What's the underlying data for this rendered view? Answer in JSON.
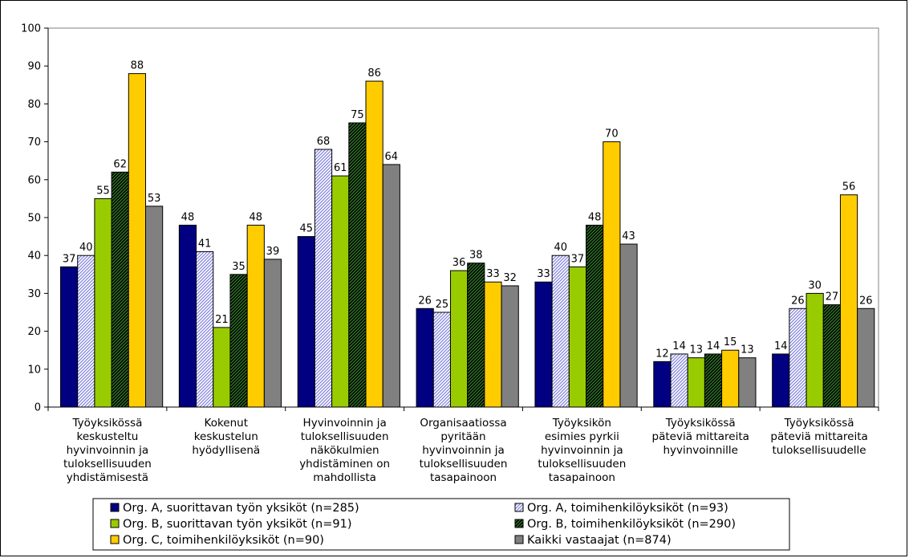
{
  "chart_data": {
    "type": "bar",
    "title": "",
    "xlabel": "",
    "ylabel": "",
    "ylim": [
      0,
      100
    ],
    "yticks": [
      0,
      10,
      20,
      30,
      40,
      50,
      60,
      70,
      80,
      90,
      100
    ],
    "grid": false,
    "legend_placement": "bottom",
    "categories": [
      [
        "Työyksikössä",
        "keskusteltu",
        "hyvinvoinnin ja",
        "tuloksellisuuden",
        "yhdistämisestä"
      ],
      [
        "Kokenut",
        "keskustelun",
        "hyödyllisenä"
      ],
      [
        "Hyvinvoinnin ja",
        "tuloksellisuuden",
        "näkökulmien",
        "yhdistäminen on",
        "mahdollista"
      ],
      [
        "Organisaatiossa",
        "pyritään",
        "hyvinvoinnin ja",
        "tuloksellisuuden",
        "tasapainoon"
      ],
      [
        "Työyksikön",
        "esimies pyrkii",
        "hyvinvoinnin ja",
        "tuloksellisuuden",
        "tasapainoon"
      ],
      [
        "Työyksikössä",
        "päteviä mittareita",
        "hyvinvoinnille"
      ],
      [
        "Työyksikössä",
        "päteviä mittareita",
        "tuloksellisuudelle"
      ]
    ],
    "series": [
      {
        "name": "Org. A, suorittavan työn yksiköt (n=285)",
        "color": "#000080",
        "pattern": "solid",
        "values": [
          37,
          48,
          45,
          26,
          33,
          12,
          14
        ]
      },
      {
        "name": "Org. A, toimihenkilöyksiköt (n=93)",
        "color": "#9999ff",
        "pattern": "light-diagonal",
        "values": [
          40,
          41,
          68,
          25,
          40,
          14,
          26
        ]
      },
      {
        "name": "Org. B, suorittavan työn yksiköt (n=91)",
        "color": "#99cc00",
        "pattern": "solid",
        "values": [
          55,
          21,
          61,
          36,
          37,
          13,
          30
        ]
      },
      {
        "name": "Org. B, toimihenkilöyksiköt (n=290)",
        "color": "#003300",
        "pattern": "dark-diagonal",
        "values": [
          62,
          35,
          75,
          38,
          48,
          14,
          27
        ]
      },
      {
        "name": "Org. C, toimihenkilöyksiköt (n=90)",
        "color": "#ffcc00",
        "pattern": "solid",
        "values": [
          88,
          48,
          86,
          33,
          70,
          15,
          56
        ]
      },
      {
        "name": "Kaikki vastaajat (n=874)",
        "color": "#808080",
        "pattern": "solid",
        "values": [
          53,
          39,
          64,
          32,
          43,
          13,
          26
        ]
      }
    ]
  }
}
